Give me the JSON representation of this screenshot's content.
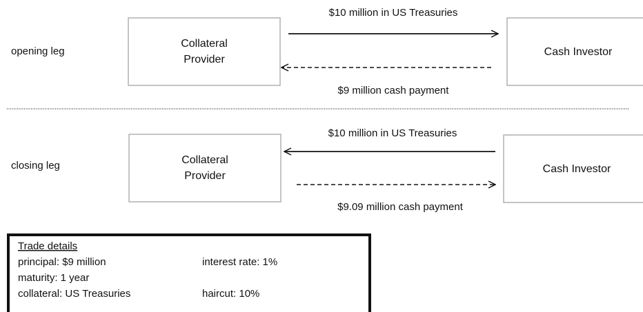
{
  "opening_leg": {
    "label": "opening leg",
    "provider": [
      "Collateral",
      "Provider"
    ],
    "investor": "Cash Investor",
    "top_arrow": "$10 million in US Treasuries",
    "bottom_arrow": "$9 million cash payment"
  },
  "closing_leg": {
    "label": "closing leg",
    "provider": [
      "Collateral",
      "Provider"
    ],
    "investor": "Cash Investor",
    "top_arrow": "$10 million in US Treasuries",
    "bottom_arrow": "$9.09 million cash payment"
  },
  "trade_details": {
    "title": "Trade details",
    "rows": [
      [
        "principal: $9 million",
        "interest rate: 1%"
      ],
      [
        "maturity: 1 year"
      ],
      [
        "collateral: US Treasuries",
        "haircut: 10%"
      ]
    ]
  }
}
